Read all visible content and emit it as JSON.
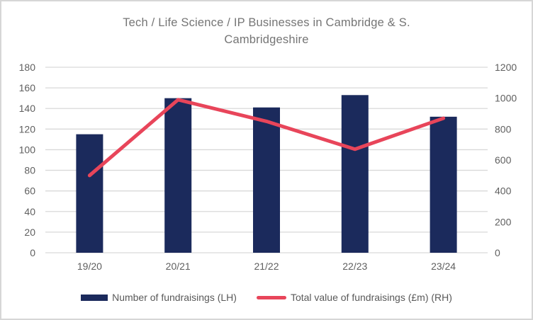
{
  "chart": {
    "title": "Tech / Life Science / IP Businesses in Cambridge & S. Cambridgeshire",
    "legend": {
      "bar_label": "Number of fundraisings (LH)",
      "line_label": "Total value of fundraisings (£m) (RH)"
    }
  },
  "chart_data": {
    "type": "combo",
    "categories": [
      "19/20",
      "20/21",
      "21/22",
      "22/23",
      "23/24"
    ],
    "series": [
      {
        "name": "Number of fundraisings (LH)",
        "type": "bar",
        "axis": "left",
        "color": "#1b2a5c",
        "values": [
          115,
          150,
          141,
          153,
          132
        ]
      },
      {
        "name": "Total value of fundraisings (£m) (RH)",
        "type": "line",
        "axis": "right",
        "color": "#e8455a",
        "values": [
          500,
          990,
          850,
          670,
          870
        ]
      }
    ],
    "title": "Tech / Life Science / IP Businesses in Cambridge & S. Cambridgeshire",
    "xlabel": "",
    "ylabel_left": "",
    "ylabel_right": "",
    "axes": {
      "left": {
        "min": 0,
        "max": 180,
        "step": 20,
        "ticks": [
          0,
          20,
          40,
          60,
          80,
          100,
          120,
          140,
          160,
          180
        ]
      },
      "right": {
        "min": 0,
        "max": 1200,
        "step": 200,
        "ticks": [
          0,
          200,
          400,
          600,
          800,
          1000,
          1200
        ]
      }
    },
    "grid": true,
    "legend_position": "bottom"
  },
  "colors": {
    "bar": "#1b2a5c",
    "line": "#e8455a",
    "gridline": "#d9d9d9",
    "tick_text": "#5f5f5f",
    "title_text": "#757575",
    "card_border": "#d6d6d6"
  }
}
